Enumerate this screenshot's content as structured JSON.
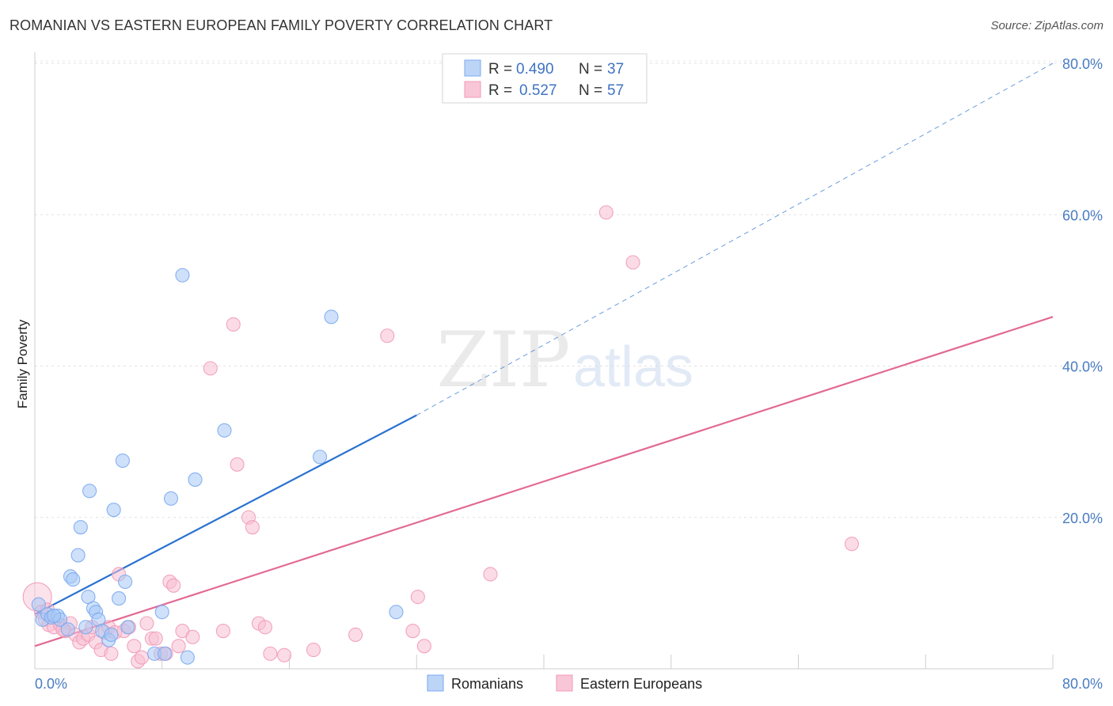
{
  "page": {
    "title": "ROMANIAN VS EASTERN EUROPEAN FAMILY POVERTY CORRELATION CHART",
    "source": "Source: ZipAtlas.com"
  },
  "chart_data": {
    "type": "scatter",
    "title": "ROMANIAN VS EASTERN EUROPEAN FAMILY POVERTY CORRELATION CHART",
    "xlabel": "",
    "ylabel": "Family Poverty",
    "xlim": [
      0,
      80
    ],
    "ylim": [
      0,
      80
    ],
    "x_tick_labels": [
      {
        "value": 0,
        "label": "0.0%"
      },
      {
        "value": 80,
        "label": "80.0%"
      }
    ],
    "y_tick_labels": [
      {
        "value": 20,
        "label": "20.0%"
      },
      {
        "value": 40,
        "label": "40.0%"
      },
      {
        "value": 60,
        "label": "60.0%"
      },
      {
        "value": 80,
        "label": "80.0%"
      }
    ],
    "watermark": {
      "part1": "ZIP",
      "part2": "atlas"
    },
    "legend_stats": [
      {
        "r_label": "R = ",
        "r_value": "0.490",
        "n_label": "N = ",
        "n_value": "37",
        "color": "#7aaaf0"
      },
      {
        "r_label": "R = ",
        "r_value": "0.527",
        "n_label": "N = ",
        "n_value": "57",
        "color": "#f29ab8"
      }
    ],
    "series": [
      {
        "name": "Romanians",
        "color": "#7aaaf0",
        "fill": "#a8c8f5",
        "line_color": "#2a72d0",
        "trend": {
          "x0": 0,
          "y0": 7.2,
          "x1": 30,
          "y1": 33.5,
          "dash_to_x": 80,
          "dash_to_y": 80
        },
        "points": [
          [
            0.3,
            8.5
          ],
          [
            0.6,
            6.5
          ],
          [
            1.0,
            7.2
          ],
          [
            1.3,
            6.8
          ],
          [
            1.8,
            7.0
          ],
          [
            2.0,
            6.5
          ],
          [
            2.6,
            5.2
          ],
          [
            2.8,
            12.2
          ],
          [
            3.0,
            11.8
          ],
          [
            3.4,
            15.0
          ],
          [
            3.6,
            18.7
          ],
          [
            4.2,
            9.5
          ],
          [
            4.3,
            23.5
          ],
          [
            4.6,
            8.0
          ],
          [
            4.8,
            7.5
          ],
          [
            5.0,
            6.5
          ],
          [
            5.3,
            5.0
          ],
          [
            5.8,
            3.8
          ],
          [
            6.0,
            4.5
          ],
          [
            6.2,
            21.0
          ],
          [
            6.6,
            9.3
          ],
          [
            6.9,
            27.5
          ],
          [
            7.1,
            11.5
          ],
          [
            7.3,
            5.5
          ],
          [
            9.4,
            2.0
          ],
          [
            10.0,
            7.5
          ],
          [
            10.2,
            2.0
          ],
          [
            10.7,
            22.5
          ],
          [
            11.6,
            52.0
          ],
          [
            12.0,
            1.5
          ],
          [
            12.6,
            25.0
          ],
          [
            14.9,
            31.5
          ],
          [
            22.4,
            28.0
          ],
          [
            23.3,
            46.5
          ],
          [
            28.4,
            7.5
          ],
          [
            1.5,
            7.0
          ],
          [
            4.0,
            5.5
          ]
        ]
      },
      {
        "name": "Eastern Europeans",
        "color": "#f29ab8",
        "fill": "#f7bfd2",
        "line_color": "#e26a95",
        "trend": {
          "x0": 0,
          "y0": 3.0,
          "x1": 80,
          "y1": 46.5
        },
        "points": [
          [
            0.2,
            9.5
          ],
          [
            0.5,
            7.5
          ],
          [
            0.8,
            6.5
          ],
          [
            1.1,
            5.8
          ],
          [
            1.5,
            5.5
          ],
          [
            2.0,
            5.8
          ],
          [
            2.4,
            5.0
          ],
          [
            2.8,
            6.0
          ],
          [
            3.2,
            4.5
          ],
          [
            3.5,
            3.5
          ],
          [
            3.8,
            4.0
          ],
          [
            4.2,
            4.5
          ],
          [
            4.5,
            5.5
          ],
          [
            4.8,
            3.5
          ],
          [
            5.2,
            2.5
          ],
          [
            5.5,
            4.8
          ],
          [
            5.8,
            5.5
          ],
          [
            6.0,
            2.0
          ],
          [
            6.3,
            4.8
          ],
          [
            6.6,
            12.5
          ],
          [
            7.0,
            5.0
          ],
          [
            7.4,
            5.5
          ],
          [
            7.8,
            3.0
          ],
          [
            8.1,
            1.0
          ],
          [
            8.4,
            1.5
          ],
          [
            8.8,
            6.0
          ],
          [
            9.2,
            4.0
          ],
          [
            9.5,
            4.0
          ],
          [
            9.9,
            2.0
          ],
          [
            10.3,
            2.0
          ],
          [
            10.6,
            11.5
          ],
          [
            10.9,
            11.0
          ],
          [
            11.3,
            3.0
          ],
          [
            11.6,
            5.0
          ],
          [
            12.4,
            4.2
          ],
          [
            14.8,
            5.0
          ],
          [
            15.6,
            45.5
          ],
          [
            15.9,
            27.0
          ],
          [
            16.8,
            20.0
          ],
          [
            17.1,
            18.7
          ],
          [
            17.6,
            6.0
          ],
          [
            18.1,
            5.5
          ],
          [
            18.5,
            2.0
          ],
          [
            19.6,
            1.8
          ],
          [
            13.8,
            39.7
          ],
          [
            21.9,
            2.5
          ],
          [
            25.2,
            4.5
          ],
          [
            27.7,
            44.0
          ],
          [
            29.7,
            5.0
          ],
          [
            30.1,
            9.5
          ],
          [
            30.6,
            3.0
          ],
          [
            35.8,
            12.5
          ],
          [
            44.9,
            60.3
          ],
          [
            47.0,
            53.7
          ],
          [
            64.2,
            16.5
          ],
          [
            1.0,
            7.8
          ],
          [
            2.2,
            5.2
          ]
        ]
      }
    ]
  }
}
